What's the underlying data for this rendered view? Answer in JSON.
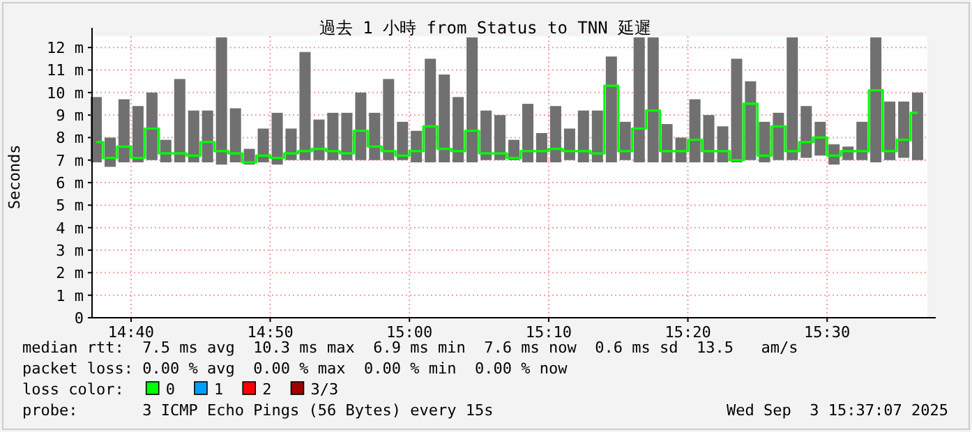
{
  "chart_data": {
    "type": "bar",
    "title": "過去 1 小時 from Status to TNN 延遲",
    "ylabel": "Seconds",
    "legend_title": "loss color:",
    "x": [
      14.625,
      14.6417,
      14.6583,
      14.675,
      14.6917,
      14.7083,
      14.725,
      14.7417,
      14.7583,
      14.775,
      14.7917,
      14.8083,
      14.825,
      14.8417,
      14.8583,
      14.875,
      14.8917,
      14.9083,
      14.925,
      14.9417,
      14.9583,
      14.975,
      14.9917,
      15.0083,
      15.025,
      15.0417,
      15.0583,
      15.075,
      15.0917,
      15.1083,
      15.125,
      15.1417,
      15.1583,
      15.175,
      15.1917,
      15.2083,
      15.225,
      15.2417,
      15.2583,
      15.275,
      15.2917,
      15.3083,
      15.325,
      15.3417,
      15.3583,
      15.375,
      15.3917,
      15.4083,
      15.425,
      15.4417,
      15.4583,
      15.475,
      15.4917,
      15.5083,
      15.525,
      15.5417,
      15.5583,
      15.575,
      15.5917,
      15.6083
    ],
    "series": [
      {
        "color": "#707070",
        "base": [
          6.9,
          6.7,
          6.9,
          6.9,
          7.0,
          6.9,
          6.9,
          6.9,
          6.9,
          6.8,
          6.9,
          6.8,
          6.9,
          6.8,
          7.0,
          7.0,
          7.0,
          7.0,
          7.0,
          7.0,
          7.0,
          7.0,
          7.0,
          6.9,
          6.9,
          6.9,
          6.9,
          6.9,
          7.0,
          7.0,
          7.0,
          6.9,
          6.9,
          6.9,
          7.0,
          6.9,
          6.9,
          6.9,
          7.0,
          6.9,
          6.9,
          6.9,
          6.9,
          6.9,
          6.9,
          6.9,
          6.9,
          7.0,
          6.9,
          7.0,
          7.0,
          7.1,
          7.2,
          6.8,
          7.0,
          7.0,
          6.9,
          7.0,
          7.1,
          7.0
        ],
        "values": [
          2.9,
          1.3,
          2.8,
          2.5,
          3.0,
          1.0,
          3.7,
          2.3,
          2.3,
          5.65,
          2.4,
          0.7,
          1.5,
          2.3,
          1.4,
          4.8,
          1.8,
          2.1,
          2.1,
          3.0,
          2.1,
          3.6,
          1.7,
          1.4,
          4.6,
          3.9,
          2.9,
          5.55,
          2.2,
          2.0,
          0.9,
          2.6,
          1.3,
          2.5,
          1.4,
          2.3,
          2.3,
          4.7,
          1.7,
          5.55,
          5.55,
          1.7,
          1.1,
          2.8,
          2.1,
          1.6,
          4.6,
          3.5,
          1.8,
          2.1,
          5.45,
          2.3,
          1.5,
          0.9,
          0.6,
          1.7,
          5.55,
          2.6,
          2.5,
          3.0
        ]
      },
      {
        "type": "step",
        "name": "0",
        "color": "#00ff00",
        "values": [
          7.8,
          7.1,
          7.6,
          7.1,
          8.4,
          7.3,
          7.3,
          7.2,
          7.8,
          7.4,
          7.3,
          6.9,
          7.2,
          7.1,
          7.3,
          7.4,
          7.5,
          7.4,
          7.3,
          8.3,
          7.6,
          7.4,
          7.2,
          7.4,
          8.5,
          7.5,
          7.4,
          8.3,
          7.3,
          7.3,
          7.1,
          7.4,
          7.4,
          7.5,
          7.4,
          7.4,
          7.3,
          10.3,
          7.4,
          8.4,
          9.2,
          7.4,
          7.4,
          7.9,
          7.4,
          7.4,
          7.0,
          9.5,
          7.2,
          8.5,
          7.4,
          7.8,
          8.0,
          7.2,
          7.4,
          7.4,
          10.1,
          7.4,
          7.9,
          9.1
        ]
      },
      {
        "type": "scatter",
        "name": "1",
        "color": "#00a0ff",
        "values": [
          null,
          null,
          null,
          null,
          null,
          null,
          null,
          null,
          null,
          null,
          null,
          null,
          null,
          null,
          null,
          null,
          null,
          null,
          null,
          null,
          null,
          null,
          null,
          null,
          null,
          null,
          null,
          null,
          null,
          null,
          null,
          null,
          null,
          null,
          null,
          null,
          null,
          null,
          null,
          null,
          null,
          null,
          null,
          null,
          null,
          null,
          null,
          null,
          null,
          null,
          null,
          null,
          null,
          null,
          null,
          null,
          null,
          null,
          null,
          null
        ]
      },
      {
        "type": "scatter",
        "name": "2",
        "color": "#ff0000",
        "values": [
          null,
          null,
          null,
          null,
          null,
          null,
          null,
          null,
          null,
          null,
          null,
          null,
          null,
          null,
          null,
          null,
          null,
          null,
          null,
          null,
          null,
          null,
          null,
          null,
          null,
          null,
          null,
          null,
          null,
          null,
          null,
          null,
          null,
          null,
          null,
          null,
          null,
          null,
          null,
          null,
          null,
          null,
          null,
          null,
          null,
          null,
          null,
          null,
          null,
          null,
          null,
          null,
          null,
          null,
          null,
          null,
          null,
          null,
          null,
          null
        ]
      },
      {
        "type": "scatter",
        "name": "3/3",
        "color": "#a00000",
        "values": [
          null,
          null,
          null,
          null,
          null,
          null,
          null,
          null,
          null,
          null,
          null,
          null,
          null,
          null,
          null,
          null,
          null,
          null,
          null,
          null,
          null,
          null,
          null,
          null,
          null,
          null,
          null,
          null,
          null,
          null,
          null,
          null,
          null,
          null,
          null,
          null,
          null,
          null,
          null,
          null,
          null,
          null,
          null,
          null,
          null,
          null,
          null,
          null,
          null,
          null,
          null,
          null,
          null,
          null,
          null,
          null,
          null,
          null,
          null,
          null
        ]
      }
    ],
    "xlim": [
      14.62,
      15.62
    ],
    "xticks": [
      {
        "value": 14.6667,
        "label": "14:40"
      },
      {
        "value": 14.8333,
        "label": "14:50"
      },
      {
        "value": 15,
        "label": "15:00"
      },
      {
        "value": 15.1667,
        "label": "15:10"
      },
      {
        "value": 15.3333,
        "label": "15:20"
      },
      {
        "value": 15.5,
        "label": "15:30"
      }
    ],
    "ylim": [
      0,
      12.5
    ],
    "yticks": [
      0,
      {
        "value": 1,
        "label": "1 m"
      },
      {
        "value": 2,
        "label": "2 m"
      },
      {
        "value": 3,
        "label": "3 m"
      },
      {
        "value": 4,
        "label": "4 m"
      },
      {
        "value": 5,
        "label": "5 m"
      },
      {
        "value": 6,
        "label": "6 m"
      },
      {
        "value": 7,
        "label": "7 m"
      },
      {
        "value": 8,
        "label": "8 m"
      },
      {
        "value": 9,
        "label": "9 m"
      },
      {
        "value": 10,
        "label": "10 m"
      },
      {
        "value": 11,
        "label": "11 m"
      },
      {
        "value": 12,
        "label": "12 m"
      }
    ],
    "grid": true,
    "legend": "bottom",
    "annotations": [
      "median rtt:  7.5 ms avg  10.3 ms max  6.9 ms min  7.6 ms now  0.6 ms sd  13.5   am/s",
      "packet loss: 0.00 % avg  0.00 % max  0.00 % min  0.00 % now",
      "probe:       3 ICMP Echo Pings (56 Bytes) every 15s",
      "Wed Sep  3 15:37:07 2025"
    ]
  }
}
